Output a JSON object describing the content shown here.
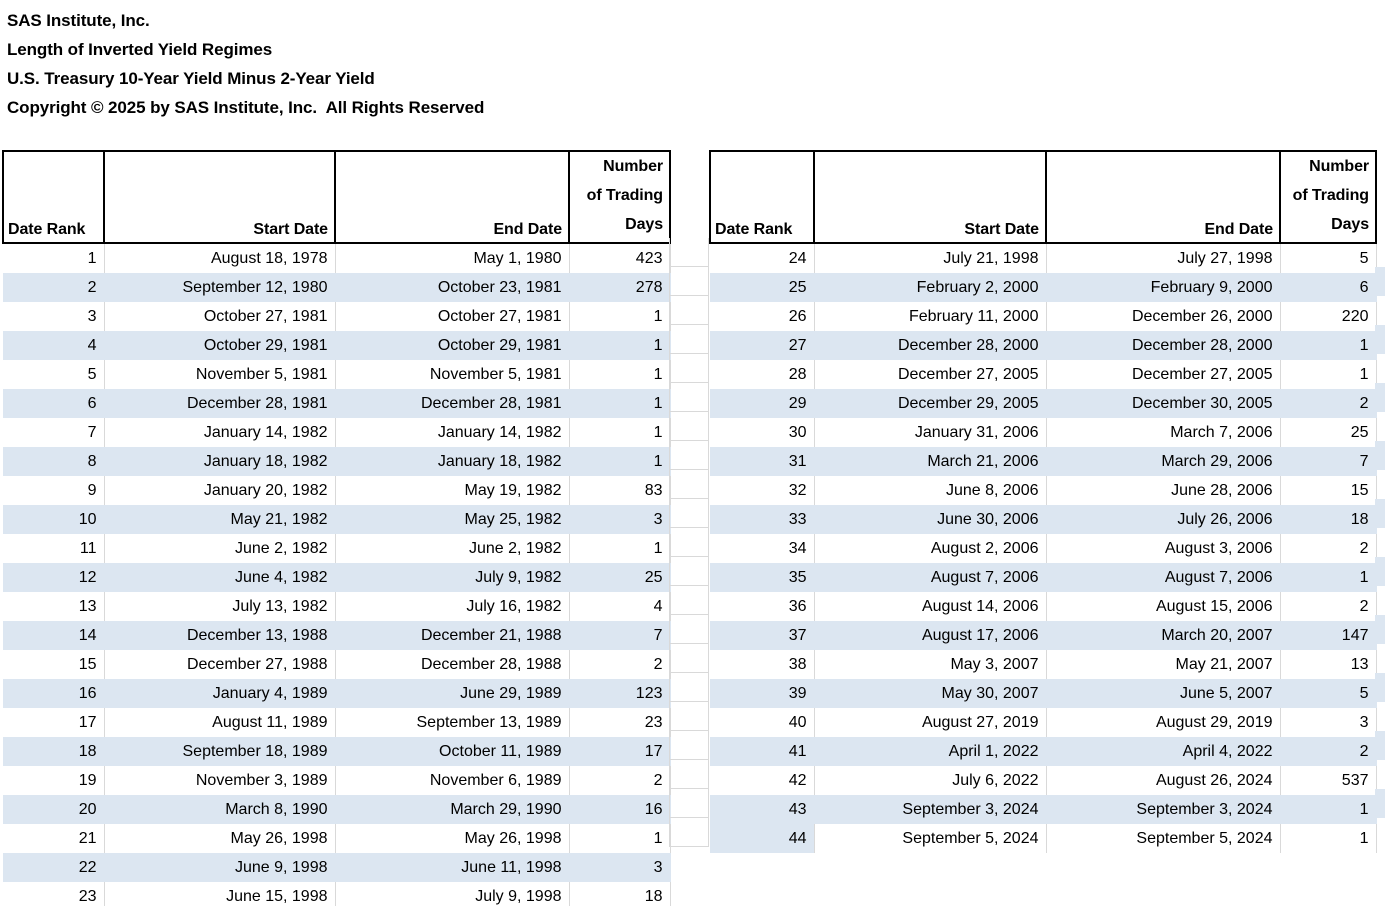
{
  "page": {
    "title_lines": [
      "SAS Institute, Inc.",
      "Length of Inverted Yield Regimes",
      "U.S. Treasury 10-Year Yield Minus 2-Year Yield",
      "Copyright © 2025 by SAS Institute, Inc.  All Rights Reserved"
    ]
  },
  "table_header": {
    "date_rank": "Date Rank",
    "start_date": "Start Date",
    "end_date": "End Date",
    "days_lines": [
      "Number",
      "of Trading",
      "Days"
    ]
  },
  "colors": {
    "band_fill": "#dce6f1",
    "gridline": "#d9d9d9",
    "table_border": "#000000",
    "text": "#000000",
    "background": "#ffffff"
  },
  "tables": {
    "left": {
      "rows": [
        [
          1,
          "August 18, 1978",
          "May 1, 1980",
          423
        ],
        [
          2,
          "September 12, 1980",
          "October 23, 1981",
          278
        ],
        [
          3,
          "October 27, 1981",
          "October 27, 1981",
          1
        ],
        [
          4,
          "October 29, 1981",
          "October 29, 1981",
          1
        ],
        [
          5,
          "November 5, 1981",
          "November 5, 1981",
          1
        ],
        [
          6,
          "December 28, 1981",
          "December 28, 1981",
          1
        ],
        [
          7,
          "January 14, 1982",
          "January 14, 1982",
          1
        ],
        [
          8,
          "January 18, 1982",
          "January 18, 1982",
          1
        ],
        [
          9,
          "January 20, 1982",
          "May 19, 1982",
          83
        ],
        [
          10,
          "May 21, 1982",
          "May 25, 1982",
          3
        ],
        [
          11,
          "June 2, 1982",
          "June 2, 1982",
          1
        ],
        [
          12,
          "June 4, 1982",
          "July 9, 1982",
          25
        ],
        [
          13,
          "July 13, 1982",
          "July 16, 1982",
          4
        ],
        [
          14,
          "December 13, 1988",
          "December 21, 1988",
          7
        ],
        [
          15,
          "December 27, 1988",
          "December 28, 1988",
          2
        ],
        [
          16,
          "January 4, 1989",
          "June 29, 1989",
          123
        ],
        [
          17,
          "August 11, 1989",
          "September 13, 1989",
          23
        ],
        [
          18,
          "September 18, 1989",
          "October 11, 1989",
          17
        ],
        [
          19,
          "November 3, 1989",
          "November 6, 1989",
          2
        ],
        [
          20,
          "March 8, 1990",
          "March 29, 1990",
          16
        ],
        [
          21,
          "May 26, 1998",
          "May 26, 1998",
          1
        ],
        [
          22,
          "June 9, 1998",
          "June 11, 1998",
          3
        ],
        [
          23,
          "June 15, 1998",
          "July 9, 1998",
          18
        ]
      ]
    },
    "right": {
      "rank_only_band_ranks": [
        44
      ],
      "rows": [
        [
          24,
          "July 21, 1998",
          "July 27, 1998",
          5
        ],
        [
          25,
          "February 2, 2000",
          "February 9, 2000",
          6
        ],
        [
          26,
          "February 11, 2000",
          "December 26, 2000",
          220
        ],
        [
          27,
          "December 28, 2000",
          "December 28, 2000",
          1
        ],
        [
          28,
          "December 27, 2005",
          "December 27, 2005",
          1
        ],
        [
          29,
          "December 29, 2005",
          "December 30, 2005",
          2
        ],
        [
          30,
          "January 31, 2006",
          "March 7, 2006",
          25
        ],
        [
          31,
          "March 21, 2006",
          "March 29, 2006",
          7
        ],
        [
          32,
          "June 8, 2006",
          "June 28, 2006",
          15
        ],
        [
          33,
          "June 30, 2006",
          "July 26, 2006",
          18
        ],
        [
          34,
          "August 2, 2006",
          "August 3, 2006",
          2
        ],
        [
          35,
          "August 7, 2006",
          "August 7, 2006",
          1
        ],
        [
          36,
          "August 14, 2006",
          "August 15, 2006",
          2
        ],
        [
          37,
          "August 17, 2006",
          "March 20, 2007",
          147
        ],
        [
          38,
          "May 3, 2007",
          "May 21, 2007",
          13
        ],
        [
          39,
          "May 30, 2007",
          "June 5, 2007",
          5
        ],
        [
          40,
          "August 27, 2019",
          "August 29, 2019",
          3
        ],
        [
          41,
          "April 1, 2022",
          "April 4, 2022",
          2
        ],
        [
          42,
          "July 6, 2022",
          "August 26, 2024",
          537
        ],
        [
          43,
          "September 3, 2024",
          "September 3, 2024",
          1
        ],
        [
          44,
          "September 5, 2024",
          "September 5, 2024",
          1
        ]
      ]
    }
  }
}
